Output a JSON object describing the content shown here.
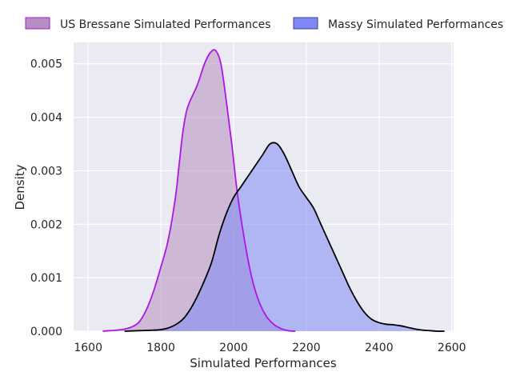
{
  "chart_data": {
    "type": "area",
    "kind": "kde-density",
    "title": "",
    "xlabel": "Simulated Performances",
    "ylabel": "Density",
    "xlim": [
      1560,
      2605
    ],
    "ylim": [
      0,
      0.0054
    ],
    "xticks": [
      1600,
      1800,
      2000,
      2200,
      2400,
      2600
    ],
    "yticks": [
      0.0,
      0.001,
      0.002,
      0.003,
      0.004,
      0.005
    ],
    "ytick_labels": [
      "0.000",
      "0.001",
      "0.002",
      "0.003",
      "0.004",
      "0.005"
    ],
    "grid": true,
    "legend_position": "top",
    "series": [
      {
        "name": "US Bressane Simulated Performances",
        "line_color": "#b014e6",
        "fill_color": "#b48fc0",
        "points": [
          [
            1640,
            0.0
          ],
          [
            1660,
            1e-05
          ],
          [
            1680,
            2e-05
          ],
          [
            1700,
            4e-05
          ],
          [
            1720,
            8e-05
          ],
          [
            1740,
            0.00017
          ],
          [
            1760,
            0.0004
          ],
          [
            1780,
            0.00075
          ],
          [
            1800,
            0.0012
          ],
          [
            1820,
            0.0017
          ],
          [
            1840,
            0.0025
          ],
          [
            1850,
            0.0031
          ],
          [
            1860,
            0.0037
          ],
          [
            1870,
            0.0041
          ],
          [
            1880,
            0.0043
          ],
          [
            1900,
            0.0046
          ],
          [
            1920,
            0.005
          ],
          [
            1935,
            0.0052
          ],
          [
            1950,
            0.00525
          ],
          [
            1965,
            0.005
          ],
          [
            1980,
            0.0043
          ],
          [
            1995,
            0.0035
          ],
          [
            2010,
            0.0026
          ],
          [
            2030,
            0.0017
          ],
          [
            2050,
            0.001
          ],
          [
            2070,
            0.00055
          ],
          [
            2090,
            0.00028
          ],
          [
            2110,
            0.00013
          ],
          [
            2130,
            5e-05
          ],
          [
            2150,
            1e-05
          ],
          [
            2170,
            0.0
          ]
        ]
      },
      {
        "name": "Massy Simulated Performances",
        "line_color": "#000000",
        "fill_color": "#8088f5",
        "points": [
          [
            1700,
            0.0
          ],
          [
            1740,
            1e-05
          ],
          [
            1780,
            2e-05
          ],
          [
            1800,
            3e-05
          ],
          [
            1820,
            6e-05
          ],
          [
            1840,
            0.00012
          ],
          [
            1860,
            0.00022
          ],
          [
            1880,
            0.0004
          ],
          [
            1900,
            0.00065
          ],
          [
            1920,
            0.00095
          ],
          [
            1940,
            0.0013
          ],
          [
            1960,
            0.0018
          ],
          [
            1980,
            0.0022
          ],
          [
            2000,
            0.0025
          ],
          [
            2020,
            0.0027
          ],
          [
            2040,
            0.0029
          ],
          [
            2060,
            0.0031
          ],
          [
            2080,
            0.0033
          ],
          [
            2100,
            0.0035
          ],
          [
            2120,
            0.0035
          ],
          [
            2140,
            0.0033
          ],
          [
            2160,
            0.003
          ],
          [
            2180,
            0.0027
          ],
          [
            2200,
            0.0025
          ],
          [
            2220,
            0.0023
          ],
          [
            2240,
            0.002
          ],
          [
            2260,
            0.0017
          ],
          [
            2280,
            0.0014
          ],
          [
            2300,
            0.0011
          ],
          [
            2320,
            0.0008
          ],
          [
            2340,
            0.00055
          ],
          [
            2360,
            0.00035
          ],
          [
            2380,
            0.00022
          ],
          [
            2400,
            0.00016
          ],
          [
            2420,
            0.00013
          ],
          [
            2440,
            0.00012
          ],
          [
            2460,
            0.0001
          ],
          [
            2480,
            7e-05
          ],
          [
            2500,
            4e-05
          ],
          [
            2520,
            2e-05
          ],
          [
            2540,
            1e-05
          ],
          [
            2560,
            0.0
          ],
          [
            2580,
            0.0
          ]
        ]
      }
    ]
  }
}
